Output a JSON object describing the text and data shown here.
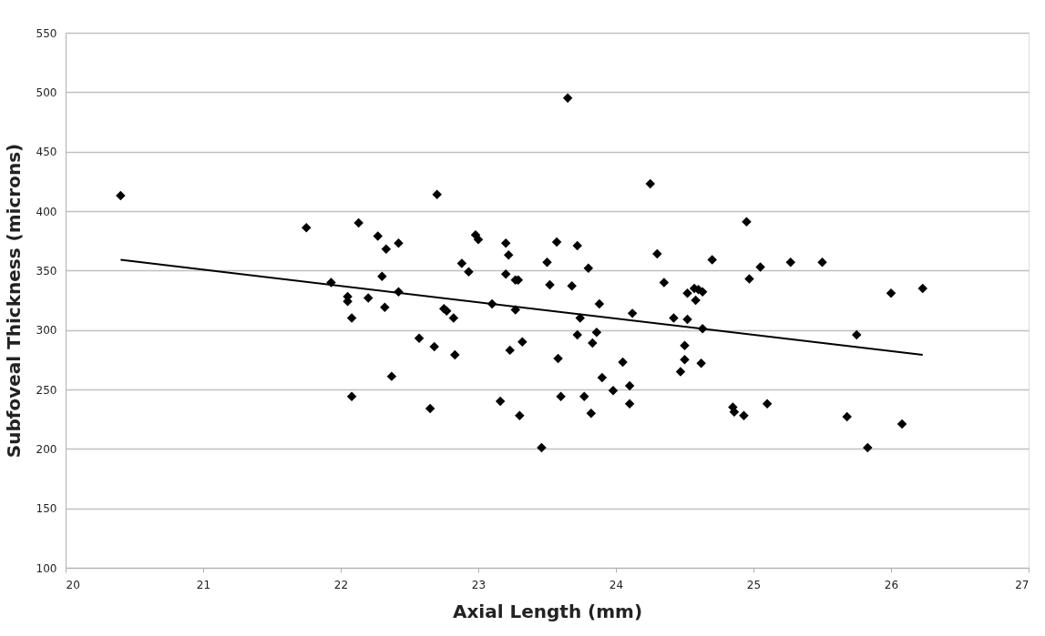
{
  "chart_data": {
    "type": "scatter",
    "xlabel": "Axial Length (mm)",
    "ylabel": "Subfoveal Thickness (microns)",
    "xlim": [
      20,
      27
    ],
    "xticks": [
      20,
      21,
      22,
      23,
      24,
      25,
      26,
      27
    ],
    "ylim": [
      100,
      550
    ],
    "yticks": [
      100,
      150,
      200,
      250,
      300,
      350,
      400,
      450,
      500,
      550
    ],
    "grid": "y",
    "marker": "diamond",
    "series": [
      {
        "color": "#000000",
        "x": [
          20.4,
          21.75,
          21.93,
          22.05,
          22.05,
          22.08,
          22.08,
          22.13,
          22.2,
          22.27,
          22.3,
          22.32,
          22.33,
          22.37,
          22.42,
          22.42,
          22.57,
          22.65,
          22.68,
          22.7,
          22.75,
          22.77,
          22.82,
          22.83,
          22.88,
          22.93,
          22.98,
          23.0,
          23.1,
          23.16,
          23.2,
          23.2,
          23.22,
          23.23,
          23.27,
          23.27,
          23.29,
          23.3,
          23.32,
          23.46,
          23.5,
          23.52,
          23.57,
          23.58,
          23.6,
          23.65,
          23.68,
          23.72,
          23.72,
          23.74,
          23.77,
          23.8,
          23.82,
          23.83,
          23.86,
          23.88,
          23.9,
          23.98,
          24.05,
          24.1,
          24.1,
          24.12,
          24.25,
          24.3,
          24.35,
          24.42,
          24.47,
          24.5,
          24.5,
          24.52,
          24.52,
          24.57,
          24.58,
          24.6,
          24.62,
          24.63,
          24.63,
          24.7,
          24.85,
          24.86,
          24.93,
          24.95,
          24.97,
          25.05,
          25.1,
          25.27,
          25.5,
          25.68,
          25.75,
          25.83,
          26.0,
          26.08,
          26.23
        ],
        "values": [
          413,
          386,
          340,
          328,
          324,
          310,
          244,
          390,
          327,
          379,
          345,
          319,
          368,
          261,
          373,
          332,
          293,
          234,
          286,
          414,
          318,
          316,
          310,
          279,
          356,
          349,
          380,
          376,
          322,
          240,
          373,
          347,
          363,
          283,
          342,
          317,
          342,
          228,
          290,
          201,
          357,
          338,
          374,
          276,
          244,
          495,
          337,
          371,
          296,
          310,
          244,
          352,
          230,
          289,
          298,
          322,
          260,
          249,
          273,
          253,
          238,
          314,
          423,
          364,
          340,
          310,
          265,
          287,
          275,
          331,
          309,
          335,
          325,
          334,
          272,
          332,
          301,
          359,
          235,
          231,
          228,
          391,
          343,
          353,
          238,
          357,
          357,
          227,
          296,
          201,
          331,
          221,
          335
        ]
      },
      {
        "type": "line",
        "color": "#000000",
        "marker": "none",
        "x": [
          20.4,
          26.23
        ],
        "values": [
          359,
          279
        ]
      }
    ]
  }
}
